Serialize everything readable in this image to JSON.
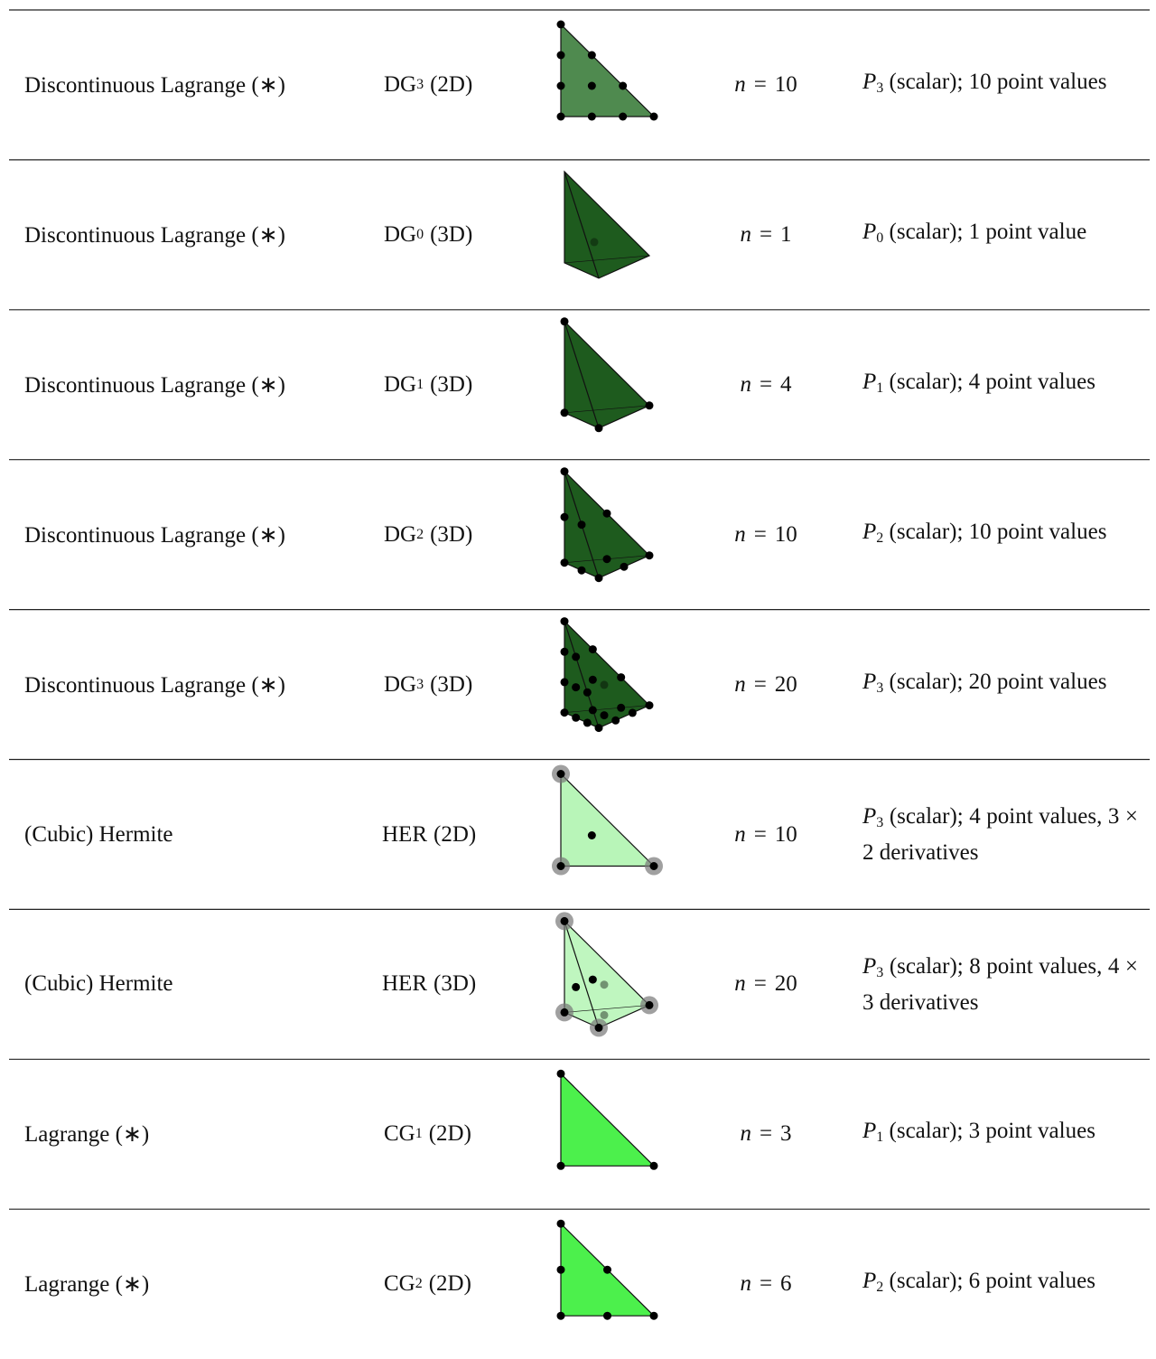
{
  "table": {
    "rows": [
      {
        "name": "Discontinuous Lagrange (∗)",
        "abbr": {
          "base": "DG",
          "sub": "3",
          "dim": "(2D)"
        },
        "n": {
          "symbol": "n",
          "eq": "=",
          "value": 10
        },
        "desc": {
          "space": "P",
          "degree": "3",
          "text": "(scalar); 10 point values"
        }
      },
      {
        "name": "Discontinuous Lagrange (∗)",
        "abbr": {
          "base": "DG",
          "sub": "0",
          "dim": "(3D)"
        },
        "n": {
          "symbol": "n",
          "eq": "=",
          "value": 1
        },
        "desc": {
          "space": "P",
          "degree": "0",
          "text": "(scalar); 1 point value"
        }
      },
      {
        "name": "Discontinuous Lagrange (∗)",
        "abbr": {
          "base": "DG",
          "sub": "1",
          "dim": "(3D)"
        },
        "n": {
          "symbol": "n",
          "eq": "=",
          "value": 4
        },
        "desc": {
          "space": "P",
          "degree": "1",
          "text": "(scalar); 4 point values"
        }
      },
      {
        "name": "Discontinuous Lagrange (∗)",
        "abbr": {
          "base": "DG",
          "sub": "2",
          "dim": "(3D)"
        },
        "n": {
          "symbol": "n",
          "eq": "=",
          "value": 10
        },
        "desc": {
          "space": "P",
          "degree": "2",
          "text": "(scalar); 10 point values"
        }
      },
      {
        "name": "Discontinuous Lagrange (∗)",
        "abbr": {
          "base": "DG",
          "sub": "3",
          "dim": "(3D)"
        },
        "n": {
          "symbol": "n",
          "eq": "=",
          "value": 20
        },
        "desc": {
          "space": "P",
          "degree": "3",
          "text": "(scalar); 20 point values"
        }
      },
      {
        "name": "(Cubic) Hermite",
        "abbr": {
          "base": "HER",
          "dim": "(2D)"
        },
        "n": {
          "symbol": "n",
          "eq": "=",
          "value": 10
        },
        "desc": {
          "space": "P",
          "degree": "3",
          "text": "(scalar); 4 point values, 3 × 2 derivatives"
        }
      },
      {
        "name": "(Cubic) Hermite",
        "abbr": {
          "base": "HER",
          "dim": "(3D)"
        },
        "n": {
          "symbol": "n",
          "eq": "=",
          "value": 20
        },
        "desc": {
          "space": "P",
          "degree": "3",
          "text": "(scalar); 8 point values, 4 × 3 derivatives"
        }
      },
      {
        "name": "Lagrange (∗)",
        "abbr": {
          "base": "CG",
          "sub": "1",
          "dim": "(2D)"
        },
        "n": {
          "symbol": "n",
          "eq": "=",
          "value": 3
        },
        "desc": {
          "space": "P",
          "degree": "1",
          "text": "(scalar); 3 point values"
        }
      },
      {
        "name": "Lagrange (∗)",
        "abbr": {
          "base": "CG",
          "sub": "2",
          "dim": "(2D)"
        },
        "n": {
          "symbol": "n",
          "eq": "=",
          "value": 6
        },
        "desc": {
          "space": "P",
          "degree": "2",
          "text": "(scalar); 6 point values"
        }
      }
    ]
  }
}
